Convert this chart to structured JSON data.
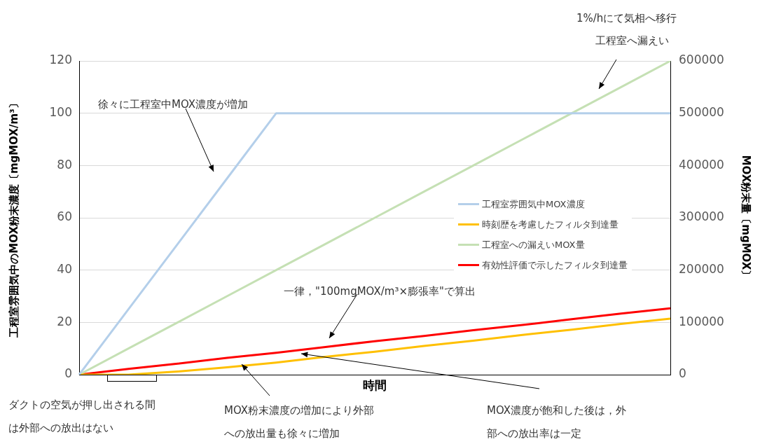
{
  "chart_data": {
    "type": "line",
    "xlabel": "時間",
    "ylabel": "工程室雰囲気中のMOX粉末濃度〔mgMOX/m³〕",
    "y2label": "MOX粉末量〔mgMOX〕",
    "categories": [
      null,
      null,
      null,
      null,
      null,
      null,
      null,
      null,
      null,
      null,
      null,
      null,
      null
    ],
    "ylim": [
      0,
      120
    ],
    "yticks": [
      0,
      20,
      40,
      60,
      80,
      100,
      120
    ],
    "y2lim": [
      0,
      600000
    ],
    "y2ticks": [
      0,
      100000,
      200000,
      300000,
      400000,
      500000,
      600000
    ],
    "grid": "y",
    "legend": "right",
    "marker": "none",
    "series": [
      {
        "name": "工程室雰囲気中MOX濃度",
        "color": "#b4cfea",
        "values": [
          0,
          25,
          50,
          75,
          100,
          100,
          100,
          100,
          100,
          100,
          100,
          100,
          100
        ]
      },
      {
        "name": "時刻歴を考慮したフィルタ到達量",
        "color": "#ffc000",
        "axis": "y2",
        "values": [
          0,
          0,
          6000,
          14000,
          23000,
          34000,
          44000,
          55000,
          65000,
          76000,
          86000,
          97000,
          107000
        ]
      },
      {
        "name": "工程室への漏えいMOX量",
        "color": "#c5e0b4",
        "axis": "y2",
        "values": [
          0,
          50000,
          100000,
          150000,
          200000,
          250000,
          300000,
          350000,
          400000,
          450000,
          500000,
          550000,
          600000
        ]
      },
      {
        "name": "有効性評価で示したフィルタ到達量",
        "color": "#ff0000",
        "axis": "y2",
        "values": [
          0,
          11000,
          21000,
          32000,
          42000,
          53000,
          64000,
          74000,
          85000,
          95000,
          106000,
          117000,
          127000
        ]
      }
    ],
    "annotations": [
      "1%/hにて気相へ移行",
      "工程室へ漏えい",
      "徐々に工程室中MOX濃度が増加",
      "一律，\"100mgMOX/m³×膨張率\"で算出",
      "ダクトの空気が押し出される間は外部への放出はない",
      "MOX粉末濃度の増加により外部への放出量も徐々に増加",
      "MOX濃度が飽和した後は，外部への放出率は一定"
    ]
  }
}
